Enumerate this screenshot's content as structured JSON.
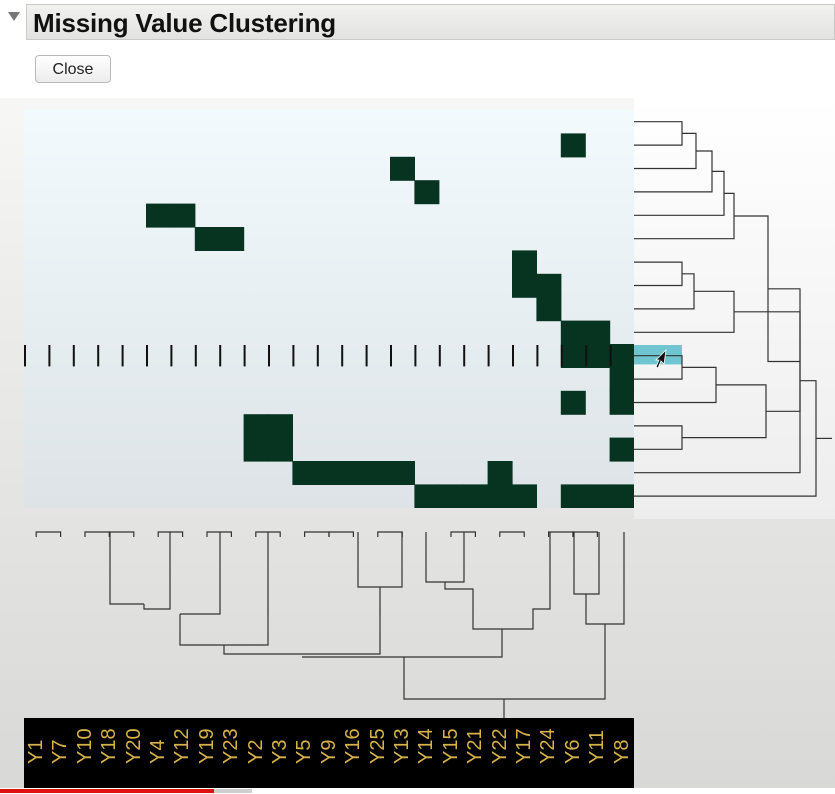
{
  "report": {
    "title": "Missing Value Clustering",
    "close_label": "Close"
  },
  "colors": {
    "missing_cell": "#063420",
    "row_highlight": "#6fc6d0",
    "label_text": "#d7b24b",
    "dendrogram_line": "#333333"
  },
  "icons": {
    "disclosure": "disclosure-triangle-icon",
    "pointer": "mouse-cursor-icon"
  },
  "heatmap": {
    "columns": [
      "Y1",
      "Y7",
      "Y10",
      "Y18",
      "Y20",
      "Y4",
      "Y12",
      "Y19",
      "Y23",
      "Y2",
      "Y3",
      "Y5",
      "Y9",
      "Y16",
      "Y25",
      "Y13",
      "Y14",
      "Y15",
      "Y21",
      "Y22",
      "Y17",
      "Y24",
      "Y6",
      "Y11",
      "Y8"
    ],
    "row_count": 17,
    "missing_cells": [
      [
        1,
        22
      ],
      [
        2,
        15
      ],
      [
        3,
        16
      ],
      [
        4,
        5
      ],
      [
        4,
        6
      ],
      [
        5,
        7
      ],
      [
        5,
        8
      ],
      [
        6,
        20
      ],
      [
        7,
        20
      ],
      [
        7,
        21
      ],
      [
        8,
        21
      ],
      [
        9,
        22
      ],
      [
        9,
        23
      ],
      [
        10,
        22
      ],
      [
        10,
        23
      ],
      [
        10,
        24
      ],
      [
        11,
        24
      ],
      [
        12,
        22
      ],
      [
        12,
        24
      ],
      [
        13,
        9
      ],
      [
        13,
        10
      ],
      [
        14,
        9
      ],
      [
        14,
        10
      ],
      [
        14,
        24
      ],
      [
        15,
        11
      ],
      [
        15,
        12
      ],
      [
        15,
        13
      ],
      [
        15,
        14
      ],
      [
        15,
        15
      ],
      [
        15,
        19
      ],
      [
        16,
        16
      ],
      [
        16,
        17
      ],
      [
        16,
        18
      ],
      [
        16,
        19
      ],
      [
        16,
        20
      ],
      [
        16,
        22
      ],
      [
        16,
        23
      ],
      [
        16,
        24
      ]
    ],
    "tick_row": 10,
    "highlighted_row": 10
  },
  "progress": {
    "fraction": 0.85
  }
}
